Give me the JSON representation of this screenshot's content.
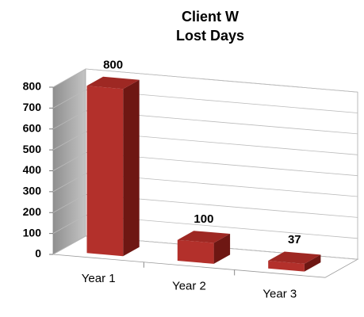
{
  "chart_data": {
    "type": "bar3d",
    "title": "Client W",
    "subtitle": "Lost Days",
    "categories": [
      "Year 1",
      "Year 2",
      "Year 3"
    ],
    "values": [
      800,
      100,
      37
    ],
    "color": "#b3302b",
    "ylim": [
      0,
      800
    ],
    "yticks": [
      0,
      100,
      200,
      300,
      400,
      500,
      600,
      700,
      800
    ],
    "grid": true
  }
}
